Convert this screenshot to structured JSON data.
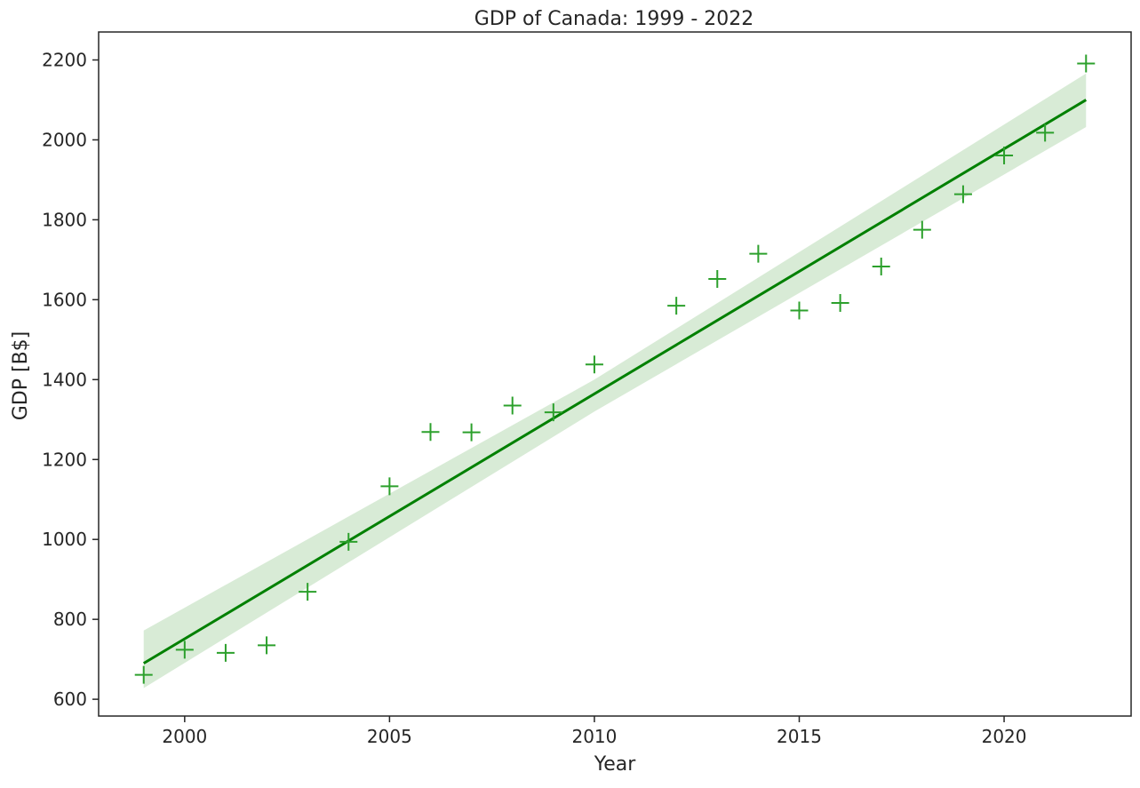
{
  "chart_data": {
    "type": "scatter",
    "title": "GDP of Canada: 1999 - 2022",
    "xlabel": "Year",
    "ylabel": "GDP [B$]",
    "xlim": [
      1997.9,
      2023.1
    ],
    "ylim": [
      558,
      2270
    ],
    "xticks": [
      2000,
      2005,
      2010,
      2015,
      2020
    ],
    "yticks": [
      600,
      800,
      1000,
      1200,
      1400,
      1600,
      1800,
      2000,
      2200
    ],
    "grid": false,
    "colors": {
      "marker": "#2ca02c",
      "line": "#008000",
      "band": "#d8ebd6",
      "axes": "#262626"
    },
    "series": [
      {
        "marker": "plus",
        "points": [
          {
            "x": 1999,
            "y": 661
          },
          {
            "x": 2000,
            "y": 724
          },
          {
            "x": 2001,
            "y": 716
          },
          {
            "x": 2002,
            "y": 735
          },
          {
            "x": 2003,
            "y": 869
          },
          {
            "x": 2004,
            "y": 994
          },
          {
            "x": 2005,
            "y": 1133
          },
          {
            "x": 2006,
            "y": 1269
          },
          {
            "x": 2007,
            "y": 1268
          },
          {
            "x": 2008,
            "y": 1335
          },
          {
            "x": 2009,
            "y": 1318
          },
          {
            "x": 2010,
            "y": 1438
          },
          {
            "x": 2012,
            "y": 1585
          },
          {
            "x": 2013,
            "y": 1652
          },
          {
            "x": 2014,
            "y": 1715
          },
          {
            "x": 2015,
            "y": 1573
          },
          {
            "x": 2016,
            "y": 1592
          },
          {
            "x": 2017,
            "y": 1683
          },
          {
            "x": 2018,
            "y": 1775
          },
          {
            "x": 2019,
            "y": 1864
          },
          {
            "x": 2020,
            "y": 1961
          },
          {
            "x": 2021,
            "y": 2018
          },
          {
            "x": 2022,
            "y": 2191
          }
        ]
      }
    ],
    "regression": {
      "x_start": 1999,
      "x_end": 2022,
      "y_start": 690,
      "y_end": 2100,
      "band": [
        {
          "x": 1999,
          "lower": 628,
          "upper": 772
        },
        {
          "x": 2010,
          "lower": 1320,
          "upper": 1400
        },
        {
          "x": 2022,
          "lower": 2032,
          "upper": 2166
        }
      ]
    }
  }
}
